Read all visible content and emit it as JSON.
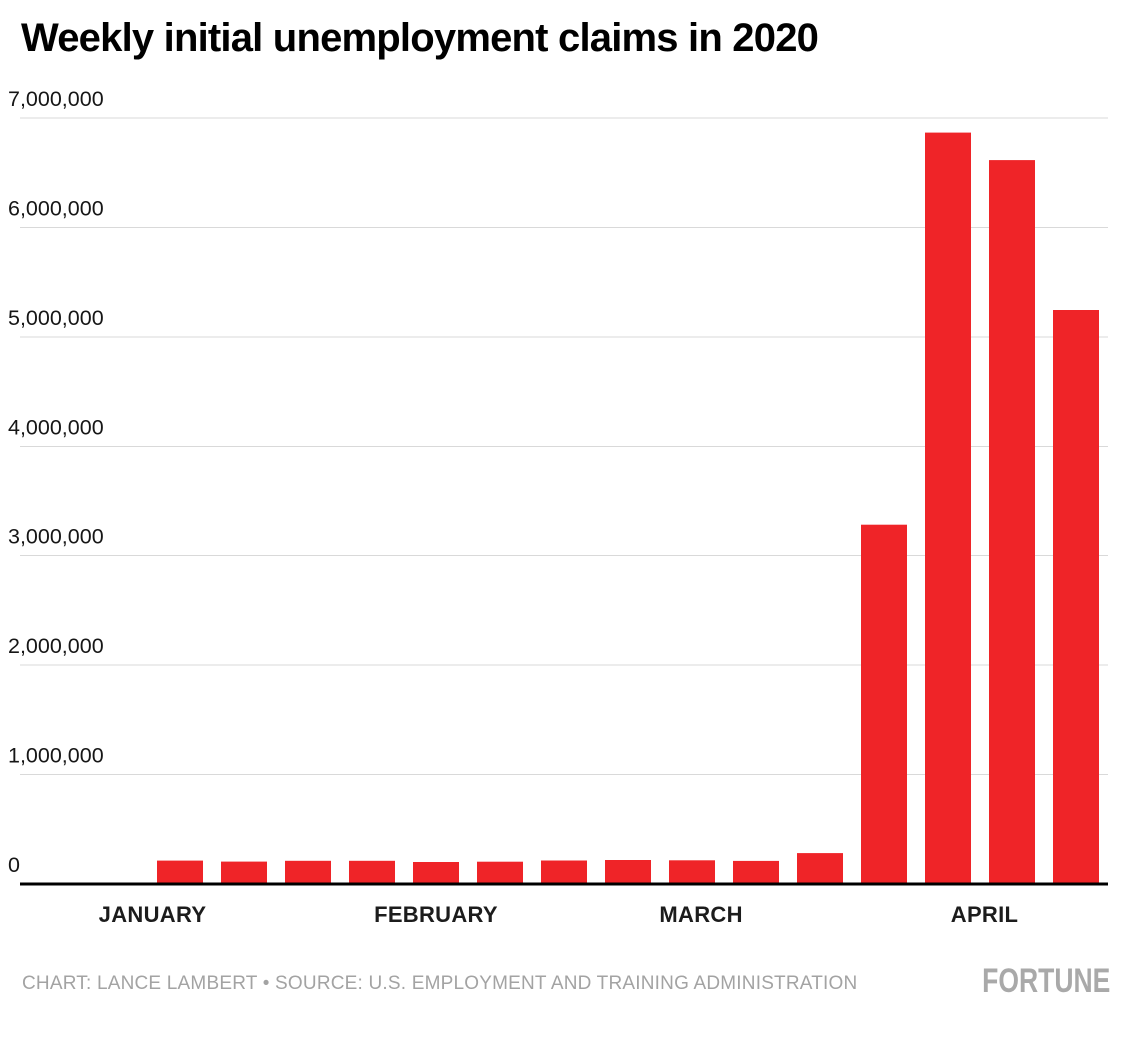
{
  "chart_data": {
    "type": "bar",
    "title": "Weekly initial unemployment claims in 2020",
    "x": [
      "2020-01-04",
      "2020-01-11",
      "2020-01-18",
      "2020-01-25",
      "2020-02-01",
      "2020-02-08",
      "2020-02-15",
      "2020-02-22",
      "2020-02-29",
      "2020-03-07",
      "2020-03-14",
      "2020-03-21",
      "2020-03-28",
      "2020-04-04",
      "2020-04-11"
    ],
    "values": [
      214000,
      205000,
      212000,
      212000,
      201000,
      204000,
      215000,
      219000,
      217000,
      211000,
      282000,
      3283000,
      6867000,
      6615000,
      5245000
    ],
    "xlabel": "",
    "ylabel": "",
    "ylim": [
      0,
      7000000
    ],
    "ytick_interval": 1000000,
    "yticks": [
      {
        "value": 0,
        "label": "0"
      },
      {
        "value": 1000000,
        "label": "1,000,000"
      },
      {
        "value": 2000000,
        "label": "2,000,000"
      },
      {
        "value": 3000000,
        "label": "3,000,000"
      },
      {
        "value": 4000000,
        "label": "4,000,000"
      },
      {
        "value": 5000000,
        "label": "5,000,000"
      },
      {
        "value": 6000000,
        "label": "6,000,000"
      },
      {
        "value": 7000000,
        "label": "7,000,000"
      }
    ],
    "month_ticks": [
      {
        "label": "JANUARY",
        "date": "2020-01-01"
      },
      {
        "label": "FEBRUARY",
        "date": "2020-02-01"
      },
      {
        "label": "MARCH",
        "date": "2020-03-01"
      },
      {
        "label": "APRIL",
        "date": "2020-04-01"
      }
    ],
    "grid": true,
    "legend": "none",
    "bar_color": "#ef2428"
  },
  "footer": {
    "credit": "CHART: LANCE LAMBERT • SOURCE: U.S. EMPLOYMENT AND TRAINING ADMINISTRATION",
    "brand": "FORTUNE"
  },
  "colors": {
    "bar": "#ef2428",
    "gridline": "#d9d9d9",
    "axis_line": "#000000",
    "title_text": "#000000",
    "tick_text": "#161616",
    "footer_text": "#a3a3a3",
    "brand_text": "#a9a9a9",
    "background": "#ffffff"
  }
}
